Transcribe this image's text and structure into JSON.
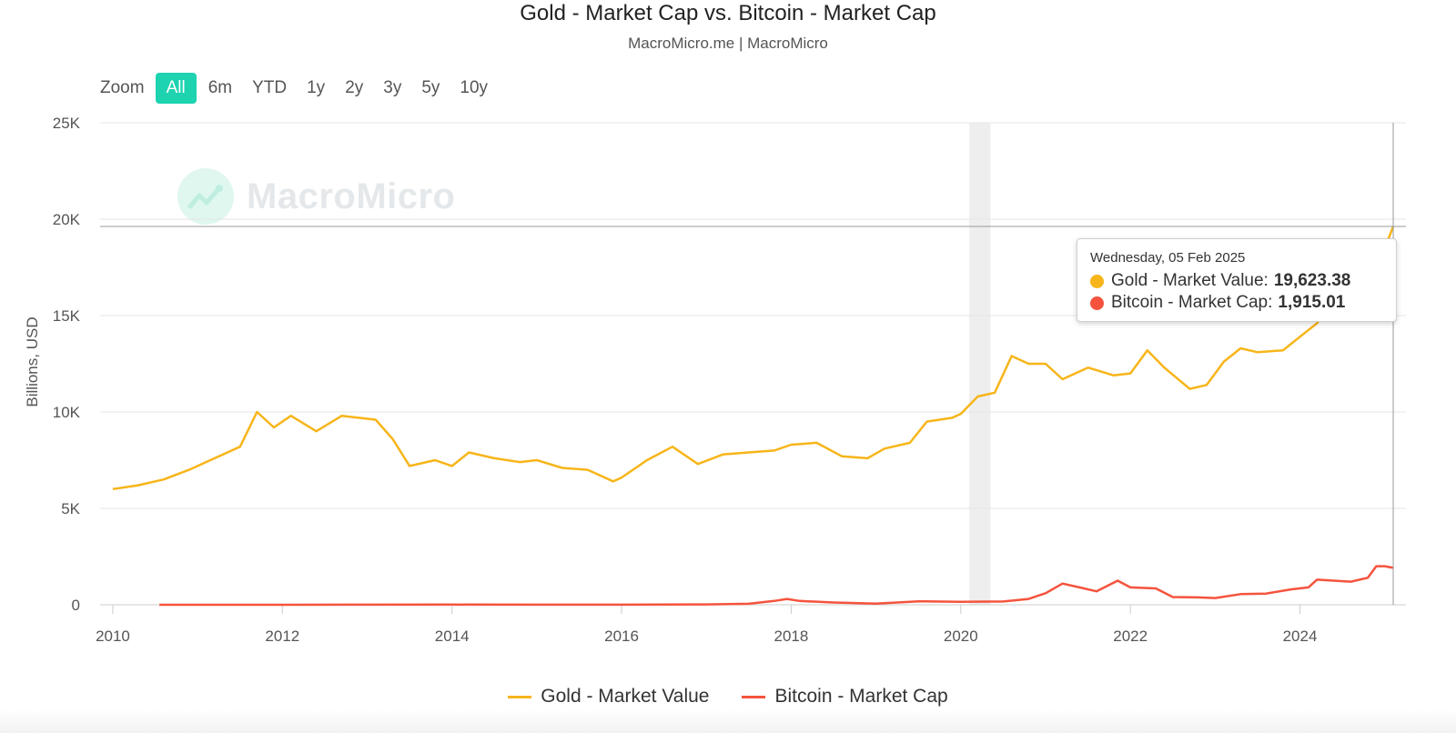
{
  "header": {
    "title": "Gold - Market Cap vs. Bitcoin - Market Cap",
    "subtitle": "MacroMicro.me | MacroMicro"
  },
  "zoom": {
    "label": "Zoom",
    "buttons": [
      "All",
      "6m",
      "YTD",
      "1y",
      "2y",
      "3y",
      "5y",
      "10y"
    ],
    "active": "All"
  },
  "watermark": {
    "text": "MacroMicro"
  },
  "tooltip": {
    "date": "Wednesday, 05 Feb 2025",
    "rows": [
      {
        "label": "Gold - Market Value:",
        "value": "19,623.38",
        "color": "#f7b519"
      },
      {
        "label": "Bitcoin - Market Cap:",
        "value": "1,915.01",
        "color": "#f5533d"
      }
    ]
  },
  "legend": [
    {
      "label": "Gold - Market Value",
      "color": "#f7b519"
    },
    {
      "label": "Bitcoin - Market Cap",
      "color": "#f5533d"
    }
  ],
  "chart_data": {
    "type": "line",
    "title": "Gold - Market Cap vs. Bitcoin - Market Cap",
    "subtitle": "MacroMicro.me | MacroMicro",
    "ylabel": "Billions, USD",
    "xlabel": "",
    "ylim": [
      0,
      25000
    ],
    "xlim": [
      2010,
      2025.1
    ],
    "y_ticks": [
      0,
      5000,
      10000,
      15000,
      20000,
      25000
    ],
    "y_tick_labels": [
      "0",
      "5K",
      "10K",
      "15K",
      "20K",
      "25K"
    ],
    "x_ticks": [
      2010,
      2012,
      2014,
      2016,
      2018,
      2020,
      2022,
      2024
    ],
    "x_tick_labels": [
      "2010",
      "2012",
      "2014",
      "2016",
      "2018",
      "2020",
      "2022",
      "2024"
    ],
    "grid": "horizontal",
    "legend_position": "bottom-center",
    "shaded_band": [
      2020.1,
      2020.35
    ],
    "crosshair_x": 2025.1,
    "series": [
      {
        "name": "Gold - Market Value",
        "color": "#f7b519",
        "points": [
          [
            2010.0,
            6000
          ],
          [
            2010.3,
            6200
          ],
          [
            2010.6,
            6500
          ],
          [
            2010.9,
            7000
          ],
          [
            2011.2,
            7600
          ],
          [
            2011.5,
            8200
          ],
          [
            2011.7,
            10000
          ],
          [
            2011.9,
            9200
          ],
          [
            2012.1,
            9800
          ],
          [
            2012.4,
            9000
          ],
          [
            2012.7,
            9800
          ],
          [
            2012.9,
            9700
          ],
          [
            2013.1,
            9600
          ],
          [
            2013.3,
            8600
          ],
          [
            2013.5,
            7200
          ],
          [
            2013.8,
            7500
          ],
          [
            2014.0,
            7200
          ],
          [
            2014.2,
            7900
          ],
          [
            2014.5,
            7600
          ],
          [
            2014.8,
            7400
          ],
          [
            2015.0,
            7500
          ],
          [
            2015.3,
            7100
          ],
          [
            2015.6,
            7000
          ],
          [
            2015.9,
            6400
          ],
          [
            2016.0,
            6600
          ],
          [
            2016.3,
            7500
          ],
          [
            2016.6,
            8200
          ],
          [
            2016.9,
            7300
          ],
          [
            2017.2,
            7800
          ],
          [
            2017.5,
            7900
          ],
          [
            2017.8,
            8000
          ],
          [
            2018.0,
            8300
          ],
          [
            2018.3,
            8400
          ],
          [
            2018.6,
            7700
          ],
          [
            2018.9,
            7600
          ],
          [
            2019.1,
            8100
          ],
          [
            2019.4,
            8400
          ],
          [
            2019.6,
            9500
          ],
          [
            2019.9,
            9700
          ],
          [
            2020.0,
            9900
          ],
          [
            2020.2,
            10800
          ],
          [
            2020.4,
            11000
          ],
          [
            2020.6,
            12900
          ],
          [
            2020.8,
            12500
          ],
          [
            2021.0,
            12500
          ],
          [
            2021.2,
            11700
          ],
          [
            2021.5,
            12300
          ],
          [
            2021.8,
            11900
          ],
          [
            2022.0,
            12000
          ],
          [
            2022.2,
            13200
          ],
          [
            2022.4,
            12300
          ],
          [
            2022.7,
            11200
          ],
          [
            2022.9,
            11400
          ],
          [
            2023.1,
            12600
          ],
          [
            2023.3,
            13300
          ],
          [
            2023.5,
            13100
          ],
          [
            2023.8,
            13200
          ],
          [
            2024.0,
            13900
          ],
          [
            2024.2,
            14600
          ],
          [
            2024.4,
            15900
          ],
          [
            2024.6,
            16800
          ],
          [
            2024.8,
            17900
          ],
          [
            2024.95,
            17900
          ],
          [
            2025.1,
            19623.38
          ]
        ]
      },
      {
        "name": "Bitcoin - Market Cap",
        "color": "#f5533d",
        "points": [
          [
            2010.55,
            0
          ],
          [
            2012.0,
            0
          ],
          [
            2013.0,
            5
          ],
          [
            2014.0,
            10
          ],
          [
            2015.0,
            4
          ],
          [
            2016.0,
            6
          ],
          [
            2017.0,
            20
          ],
          [
            2017.5,
            50
          ],
          [
            2017.8,
            200
          ],
          [
            2017.95,
            300
          ],
          [
            2018.1,
            200
          ],
          [
            2018.5,
            120
          ],
          [
            2019.0,
            60
          ],
          [
            2019.5,
            180
          ],
          [
            2020.0,
            150
          ],
          [
            2020.5,
            170
          ],
          [
            2020.8,
            300
          ],
          [
            2021.0,
            600
          ],
          [
            2021.2,
            1100
          ],
          [
            2021.4,
            900
          ],
          [
            2021.6,
            700
          ],
          [
            2021.85,
            1250
          ],
          [
            2022.0,
            900
          ],
          [
            2022.3,
            850
          ],
          [
            2022.5,
            400
          ],
          [
            2022.8,
            380
          ],
          [
            2023.0,
            350
          ],
          [
            2023.3,
            550
          ],
          [
            2023.6,
            580
          ],
          [
            2023.9,
            800
          ],
          [
            2024.1,
            900
          ],
          [
            2024.2,
            1300
          ],
          [
            2024.4,
            1250
          ],
          [
            2024.6,
            1200
          ],
          [
            2024.8,
            1400
          ],
          [
            2024.9,
            2000
          ],
          [
            2025.0,
            2000
          ],
          [
            2025.1,
            1915.01
          ]
        ]
      }
    ]
  }
}
